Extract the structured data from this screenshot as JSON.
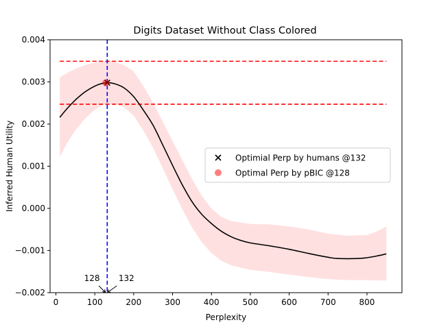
{
  "chart_data": {
    "type": "line",
    "title": "Digits Dataset Without Class Colored",
    "xlabel": "Perplexity",
    "ylabel": "Inferred Human Utility",
    "xlim": [
      -15,
      890
    ],
    "ylim": [
      -0.002,
      0.004
    ],
    "xticks": [
      0,
      100,
      200,
      300,
      400,
      500,
      600,
      700,
      800
    ],
    "xtick_labels": [
      "0",
      "100",
      "200",
      "300",
      "400",
      "500",
      "600",
      "700",
      "800"
    ],
    "yticks": [
      -0.002,
      -0.001,
      0.0,
      0.001,
      0.002,
      0.003,
      0.004
    ],
    "ytick_labels": [
      "−0.002",
      "−0.001",
      "0.000",
      "0.001",
      "0.002",
      "0.003",
      "0.004"
    ],
    "grid": false,
    "curve": {
      "color": "#000000",
      "points": [
        {
          "x": 10,
          "y": 0.00216
        },
        {
          "x": 30,
          "y": 0.00238
        },
        {
          "x": 50,
          "y": 0.00257
        },
        {
          "x": 70,
          "y": 0.00273
        },
        {
          "x": 90,
          "y": 0.00285
        },
        {
          "x": 110,
          "y": 0.00294
        },
        {
          "x": 132,
          "y": 0.00298
        },
        {
          "x": 150,
          "y": 0.00296
        },
        {
          "x": 175,
          "y": 0.00286
        },
        {
          "x": 200,
          "y": 0.00265
        },
        {
          "x": 225,
          "y": 0.00233
        },
        {
          "x": 250,
          "y": 0.00197
        },
        {
          "x": 275,
          "y": 0.0015
        },
        {
          "x": 300,
          "y": 0.00102
        },
        {
          "x": 325,
          "y": 0.00056
        },
        {
          "x": 350,
          "y": 0.00016
        },
        {
          "x": 375,
          "y": -0.00014
        },
        {
          "x": 400,
          "y": -0.00036
        },
        {
          "x": 425,
          "y": -0.00054
        },
        {
          "x": 450,
          "y": -0.00067
        },
        {
          "x": 475,
          "y": -0.00076
        },
        {
          "x": 500,
          "y": -0.00082
        },
        {
          "x": 550,
          "y": -0.00089
        },
        {
          "x": 600,
          "y": -0.00097
        },
        {
          "x": 650,
          "y": -0.00107
        },
        {
          "x": 700,
          "y": -0.00116
        },
        {
          "x": 725,
          "y": -0.00119
        },
        {
          "x": 775,
          "y": -0.00119
        },
        {
          "x": 800,
          "y": -0.00117
        },
        {
          "x": 825,
          "y": -0.00113
        },
        {
          "x": 850,
          "y": -0.00108
        }
      ]
    },
    "band": {
      "color": "#ffcccc",
      "opacity": 0.6,
      "points": [
        {
          "x": 10,
          "lo": 0.00122,
          "hi": 0.00311
        },
        {
          "x": 30,
          "lo": 0.00157,
          "hi": 0.00322
        },
        {
          "x": 50,
          "lo": 0.00185,
          "hi": 0.00331
        },
        {
          "x": 75,
          "lo": 0.00213,
          "hi": 0.0034
        },
        {
          "x": 100,
          "lo": 0.00234,
          "hi": 0.00346
        },
        {
          "x": 125,
          "lo": 0.00247,
          "hi": 0.00349
        },
        {
          "x": 150,
          "lo": 0.00248,
          "hi": 0.00348
        },
        {
          "x": 175,
          "lo": 0.0024,
          "hi": 0.0034
        },
        {
          "x": 200,
          "lo": 0.0022,
          "hi": 0.00325
        },
        {
          "x": 225,
          "lo": 0.00185,
          "hi": 0.0029
        },
        {
          "x": 250,
          "lo": 0.00143,
          "hi": 0.0025
        },
        {
          "x": 275,
          "lo": 0.00095,
          "hi": 0.00205
        },
        {
          "x": 300,
          "lo": 0.00045,
          "hi": 0.0016
        },
        {
          "x": 325,
          "lo": -2e-05,
          "hi": 0.00115
        },
        {
          "x": 350,
          "lo": -0.00045,
          "hi": 0.0007
        },
        {
          "x": 375,
          "lo": -0.0008,
          "hi": 0.0003
        },
        {
          "x": 400,
          "lo": -0.00106,
          "hi": 0.0
        },
        {
          "x": 425,
          "lo": -0.00124,
          "hi": -0.0002
        },
        {
          "x": 450,
          "lo": -0.00135,
          "hi": -0.0003
        },
        {
          "x": 500,
          "lo": -0.00146,
          "hi": -0.00037
        },
        {
          "x": 550,
          "lo": -0.00151,
          "hi": -0.00038
        },
        {
          "x": 600,
          "lo": -0.00157,
          "hi": -0.00043
        },
        {
          "x": 650,
          "lo": -0.00163,
          "hi": -0.0005
        },
        {
          "x": 700,
          "lo": -0.00168,
          "hi": -0.0006
        },
        {
          "x": 750,
          "lo": -0.0017,
          "hi": -0.00065
        },
        {
          "x": 800,
          "lo": -0.0017,
          "hi": -0.00063
        },
        {
          "x": 825,
          "lo": -0.00171,
          "hi": -0.00055
        },
        {
          "x": 850,
          "lo": -0.00171,
          "hi": -0.00043
        }
      ]
    },
    "hlines": [
      {
        "y": 0.00349,
        "color": "#ff0000",
        "style": "dashed"
      },
      {
        "y": 0.00247,
        "color": "#ff0000",
        "style": "dashed"
      }
    ],
    "vline": {
      "x": 132,
      "color": "#0000ff",
      "style": "dashed"
    },
    "markers": [
      {
        "name": "humans",
        "x": 132,
        "y": 0.00298,
        "shape": "x",
        "color": "#000000",
        "legend": "Optimial Perp by humans @132"
      },
      {
        "name": "pbic",
        "x": 128,
        "y": 0.00298,
        "shape": "circle",
        "color": "#ff0000",
        "opacity": 0.5,
        "legend": "Optimal Perp by pBIC @128"
      }
    ],
    "legend_position": "center-right",
    "annotations": [
      {
        "text": "128",
        "x": 128,
        "y": -0.002,
        "side": "left"
      },
      {
        "text": "132",
        "x": 132,
        "y": -0.002,
        "side": "right"
      }
    ]
  }
}
